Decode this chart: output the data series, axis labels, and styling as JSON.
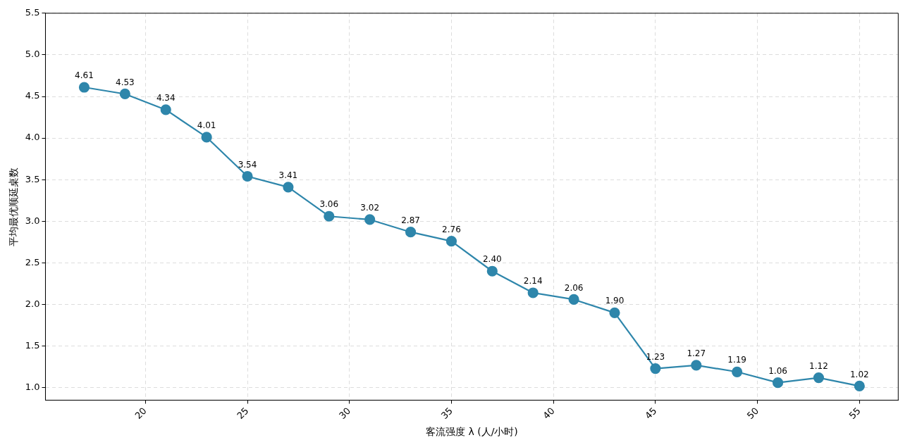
{
  "chart_data": {
    "type": "line",
    "xlabel": "客流强度 λ (人/小时)",
    "ylabel": "平均最优顺延桌数",
    "x": [
      17,
      19,
      21,
      23,
      25,
      27,
      29,
      31,
      33,
      35,
      37,
      39,
      41,
      43,
      45,
      47,
      49,
      51,
      53,
      55
    ],
    "series": [
      {
        "color": "#2e86ab",
        "values": [
          4.61,
          4.53,
          4.34,
          4.01,
          3.54,
          3.41,
          3.06,
          3.02,
          2.87,
          2.76,
          2.4,
          2.14,
          2.06,
          1.9,
          1.23,
          1.27,
          1.19,
          1.06,
          1.12,
          1.02
        ],
        "value_labels": [
          "4.61",
          "4.53",
          "4.34",
          "4.01",
          "3.54",
          "3.41",
          "3.06",
          "3.02",
          "2.87",
          "2.76",
          "2.40",
          "2.14",
          "2.06",
          "1.90",
          "1.23",
          "1.27",
          "1.19",
          "1.06",
          "1.12",
          "1.02"
        ]
      }
    ],
    "xlim": [
      15.1,
      56.9
    ],
    "xticks": [
      20,
      25,
      30,
      35,
      40,
      45,
      50,
      55
    ],
    "ylim": [
      0.85,
      5.5
    ],
    "yticks": [
      {
        "value": 1,
        "label": "1.0"
      },
      1.5,
      {
        "value": 2,
        "label": "2.0"
      },
      2.5,
      {
        "value": 3,
        "label": "3.0"
      },
      3.5,
      {
        "value": 4,
        "label": "4.0"
      },
      4.5,
      {
        "value": 5,
        "label": "5.0"
      },
      5.5
    ],
    "grid": true,
    "marker": "circle",
    "line_style": "solid",
    "legend": false
  }
}
